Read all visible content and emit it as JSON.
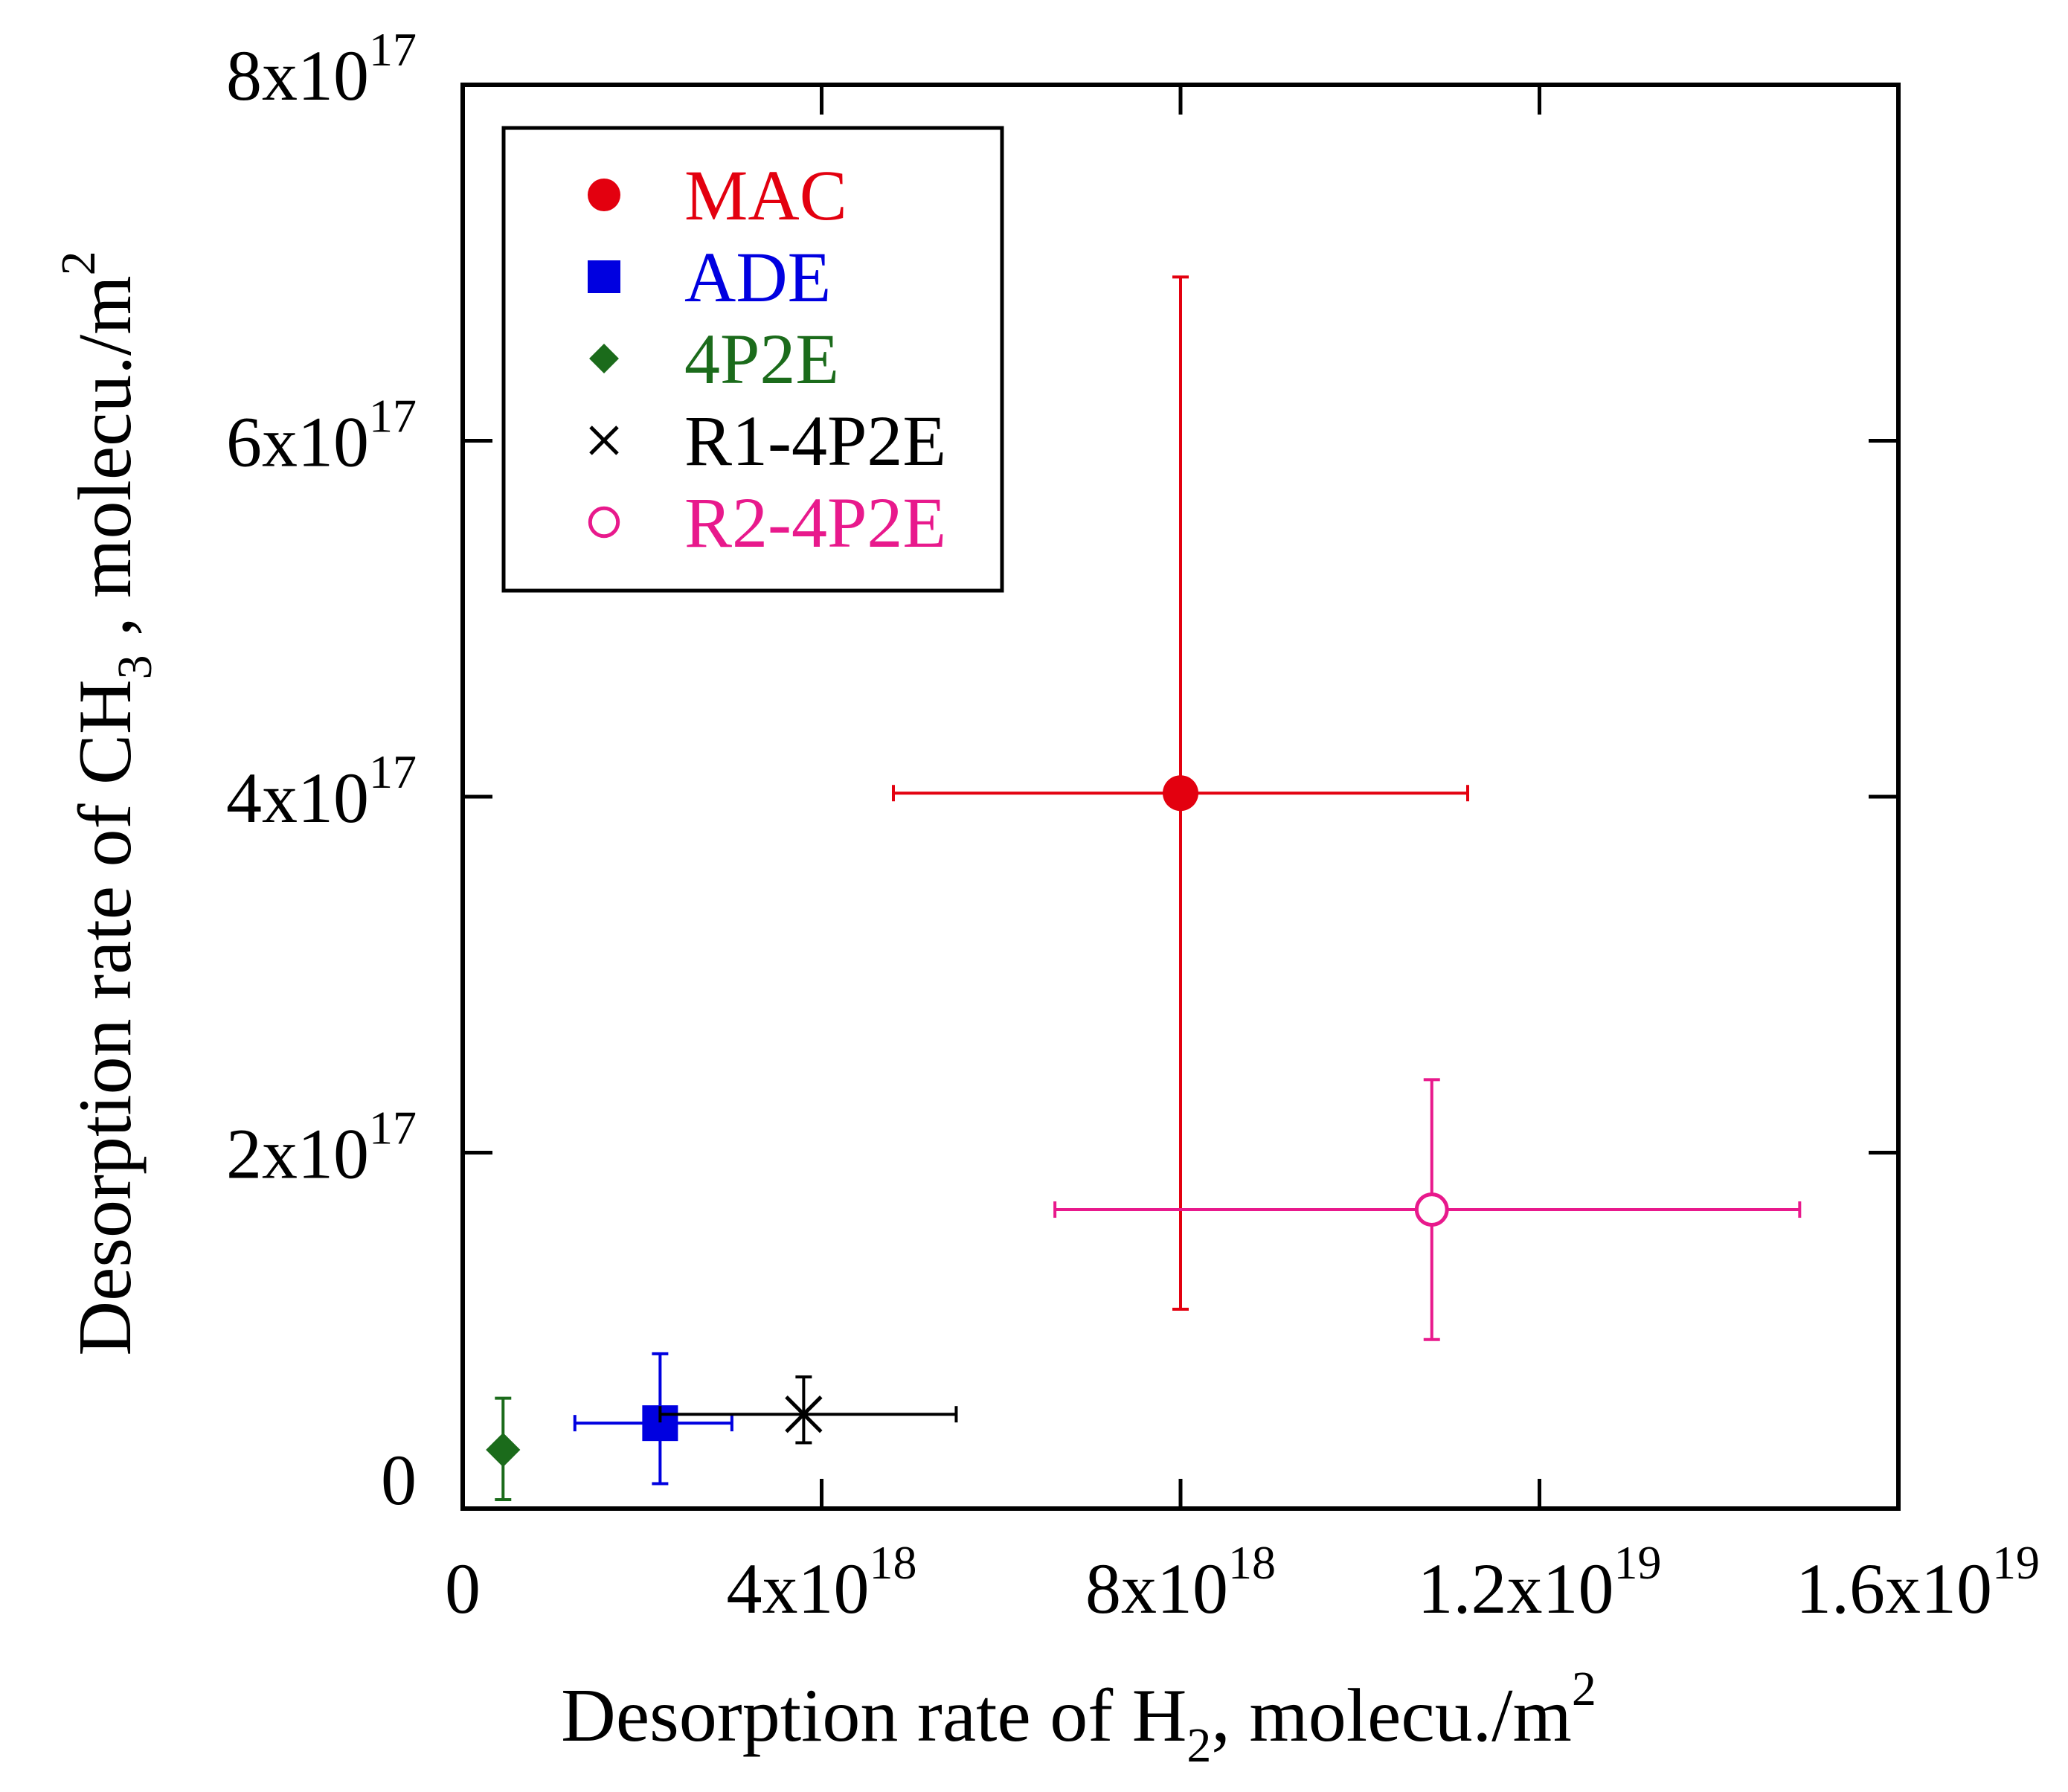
{
  "chart_data": {
    "type": "scatter",
    "title": "",
    "xlabel": {
      "main": "Desorption rate of H",
      "sub": "2",
      "rest": ", molecu./m",
      "sup": "2"
    },
    "ylabel": {
      "main": "Desorption rate of  CH",
      "sub": "3",
      "rest": " , molecu./m",
      "sup": "2"
    },
    "xlim": [
      0,
      1.6e+19
    ],
    "ylim": [
      0,
      8e+17
    ],
    "x_ticks": [
      {
        "value": 0,
        "mantissa": "0",
        "exp": ""
      },
      {
        "value": 4e+18,
        "mantissa": "4x10",
        "exp": "18"
      },
      {
        "value": 8e+18,
        "mantissa": "8x10",
        "exp": "18"
      },
      {
        "value": 1.2e+19,
        "mantissa": "1.2x10",
        "exp": "19"
      },
      {
        "value": 1.6e+19,
        "mantissa": "1.6x10",
        "exp": "19"
      }
    ],
    "y_ticks": [
      {
        "value": 0,
        "mantissa": "0",
        "exp": ""
      },
      {
        "value": 2e+17,
        "mantissa": "2x10",
        "exp": "17"
      },
      {
        "value": 4e+17,
        "mantissa": "4x10",
        "exp": "17"
      },
      {
        "value": 6e+17,
        "mantissa": "6x10",
        "exp": "17"
      },
      {
        "value": 8e+17,
        "mantissa": "8x10",
        "exp": "17"
      }
    ],
    "legend_position": "top-left",
    "series": [
      {
        "name": "MAC",
        "color": "#e3000f",
        "marker": "filled-circle",
        "x": 8e+18,
        "y": 4.02e+17,
        "xerr": [
          4.8e+18,
          1.12e+19
        ],
        "yerr": [
          1.12e+17,
          6.92e+17
        ]
      },
      {
        "name": "ADE",
        "color": "#0000e0",
        "marker": "filled-square",
        "x": 2.2e+18,
        "y": 4.8e+16,
        "xerr": [
          1.25e+18,
          3e+18
        ],
        "yerr": [
          1.4e+16,
          8.7e+16
        ]
      },
      {
        "name": "4P2E",
        "color": "#1b6b1b",
        "marker": "filled-diamond",
        "x": 4.5e+17,
        "y": 3.3e+16,
        "xerr": [
          4.5e+17,
          4.5e+17
        ],
        "yerr": [
          5000000000000000.0,
          6.2e+16
        ]
      },
      {
        "name": "R1-4P2E",
        "color": "#000000",
        "marker": "x",
        "x": 3.8e+18,
        "y": 5.3e+16,
        "xerr": [
          2.2e+18,
          5.5e+18
        ],
        "yerr": [
          3.7e+16,
          7.4e+16
        ]
      },
      {
        "name": "R2-4P2E",
        "color": "#e8198c",
        "marker": "open-circle",
        "x": 1.08e+19,
        "y": 1.68e+17,
        "xerr": [
          6.6e+18,
          1.49e+19
        ],
        "yerr": [
          9.5e+16,
          2.41e+17
        ]
      }
    ]
  }
}
